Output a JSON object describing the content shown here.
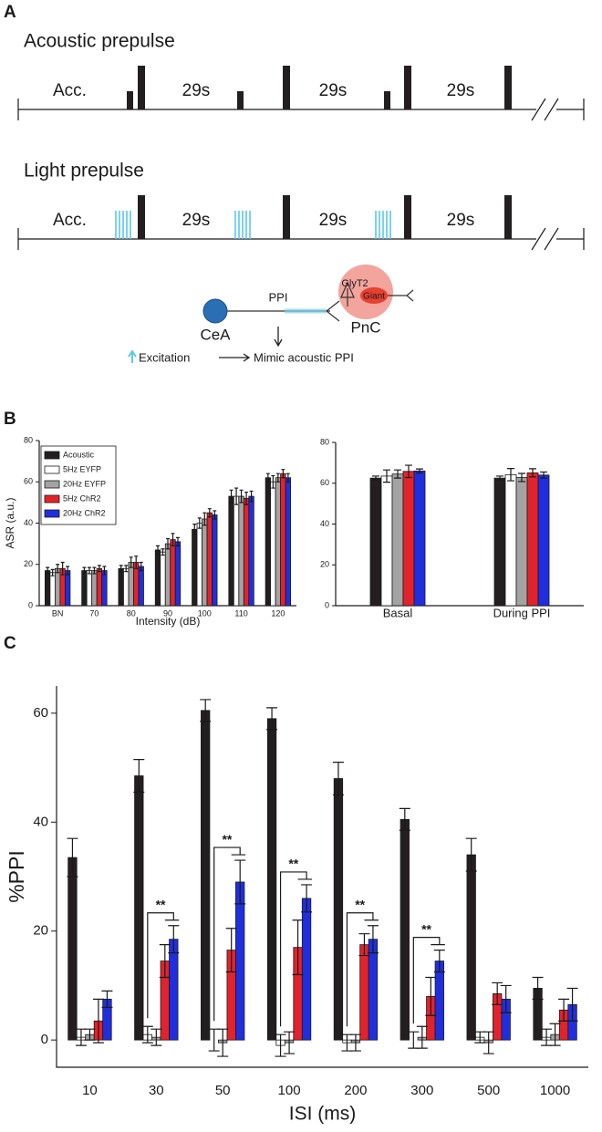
{
  "panel_labels": [
    "A",
    "B",
    "C"
  ],
  "diagram": {
    "acoustic_title": "Acoustic prepulse",
    "acoustic_acc": "Acc.",
    "acoustic_intervals": [
      "29s",
      "29s",
      "29s"
    ],
    "light_title": "Light prepulse",
    "light_acc": "Acc.",
    "light_intervals": [
      "29s",
      "29s",
      "29s"
    ],
    "pathway_label": "PPI",
    "source_label": "CeA",
    "neuron_label": "GlyT2",
    "target_cell_label": "Giant",
    "target_label": "PnC",
    "excitation_label": "Excitation",
    "outcome_label": "Mimic acoustic PPI"
  },
  "chart_data": [
    {
      "type": "bar",
      "y_label": "ASR (a.u.)",
      "x_label": "Intensity (dB)",
      "categories": [
        "BN",
        "70",
        "80",
        "90",
        "100",
        "110",
        "120"
      ],
      "series": [
        {
          "name": "Acoustic",
          "color": "#231f20",
          "values": [
            17,
            17,
            18,
            27,
            37,
            53,
            62
          ],
          "errors": [
            1.5,
            1.5,
            1.5,
            2,
            2.5,
            3,
            2
          ]
        },
        {
          "name": "5Hz EYFP",
          "color": "#ffffff",
          "values": [
            16,
            17,
            18,
            26,
            40,
            53,
            60
          ],
          "errors": [
            1.5,
            1.5,
            1.5,
            1.5,
            2.5,
            4,
            3
          ]
        },
        {
          "name": "20Hz EYFP",
          "color": "#a3a3a3",
          "values": [
            18,
            17,
            21,
            30,
            42,
            53,
            62
          ],
          "errors": [
            2,
            1.5,
            2.5,
            2.5,
            3,
            3,
            2
          ]
        },
        {
          "name": "5Hz ChR2",
          "color": "#e3232b",
          "values": [
            18,
            18,
            21,
            32,
            45,
            52,
            64
          ],
          "errors": [
            3,
            1.5,
            3,
            3,
            2,
            3,
            2
          ]
        },
        {
          "name": "20Hz ChR2",
          "color": "#1f2fe0",
          "values": [
            17,
            17,
            19,
            31,
            44,
            53,
            62
          ],
          "errors": [
            2,
            2,
            2,
            2,
            2,
            2.5,
            2
          ]
        }
      ],
      "ylim": [
        0,
        80
      ],
      "yticks": [
        0,
        20,
        40,
        60,
        80
      ],
      "legend": "upper left"
    },
    {
      "type": "bar",
      "categories": [
        "Basal",
        "During PPI"
      ],
      "series": [
        {
          "color": "#231f20",
          "values": [
            62.5,
            62.5
          ],
          "errors": [
            1,
            1
          ]
        },
        {
          "color": "#ffffff",
          "values": [
            63.5,
            64.2
          ],
          "errors": [
            3,
            3
          ]
        },
        {
          "color": "#a3a3a3",
          "values": [
            64.5,
            62.8
          ],
          "errors": [
            2,
            2
          ]
        },
        {
          "color": "#e3232b",
          "values": [
            65.8,
            65.1
          ],
          "errors": [
            3,
            2
          ]
        },
        {
          "color": "#1f2fe0",
          "values": [
            66,
            64
          ],
          "errors": [
            1,
            1.5
          ]
        }
      ],
      "ylim": [
        0,
        80
      ],
      "yticks": [
        0,
        20,
        40,
        60,
        80
      ]
    },
    {
      "type": "bar",
      "y_label": "%PPI",
      "x_label": "ISI (ms)",
      "categories": [
        "10",
        "30",
        "50",
        "100",
        "200",
        "300",
        "500",
        "1000"
      ],
      "series": [
        {
          "color": "#231f20",
          "values": [
            33.5,
            48.5,
            60.5,
            59,
            48,
            40.5,
            34,
            9.5
          ],
          "errors": [
            3.5,
            3,
            2,
            2,
            3,
            2,
            3,
            2
          ]
        },
        {
          "color": "#ffffff",
          "values": [
            0.5,
            1,
            0,
            -1,
            -0.5,
            0,
            0.5,
            0.5
          ],
          "errors": [
            1.5,
            1.5,
            2,
            2,
            1.5,
            1.5,
            1,
            1.5
          ]
        },
        {
          "color": "#a3a3a3",
          "values": [
            1,
            0.5,
            -0.5,
            -0.5,
            -0.5,
            0.5,
            -0.5,
            1
          ],
          "errors": [
            1,
            1.5,
            2.5,
            2,
            1.5,
            2,
            2,
            2
          ]
        },
        {
          "color": "#e3232b",
          "values": [
            3.5,
            14.5,
            16.5,
            17,
            17.5,
            8,
            8.5,
            5.5
          ],
          "errors": [
            4,
            3,
            4,
            5,
            2,
            3.5,
            2,
            2
          ]
        },
        {
          "color": "#1f2fe0",
          "values": [
            7.5,
            18.5,
            29,
            26,
            18.5,
            14.5,
            7.5,
            6.5
          ],
          "errors": [
            1.5,
            2.5,
            4,
            2.5,
            2.5,
            2,
            2.5,
            3
          ]
        }
      ],
      "ylim": [
        -5,
        65
      ],
      "yticks": [
        0,
        20,
        40,
        60
      ],
      "significance": [
        {
          "category": "30",
          "label": "**"
        },
        {
          "category": "50",
          "label": "**"
        },
        {
          "category": "100",
          "label": "**"
        },
        {
          "category": "200",
          "label": "**"
        },
        {
          "category": "300",
          "label": "**"
        }
      ]
    }
  ]
}
